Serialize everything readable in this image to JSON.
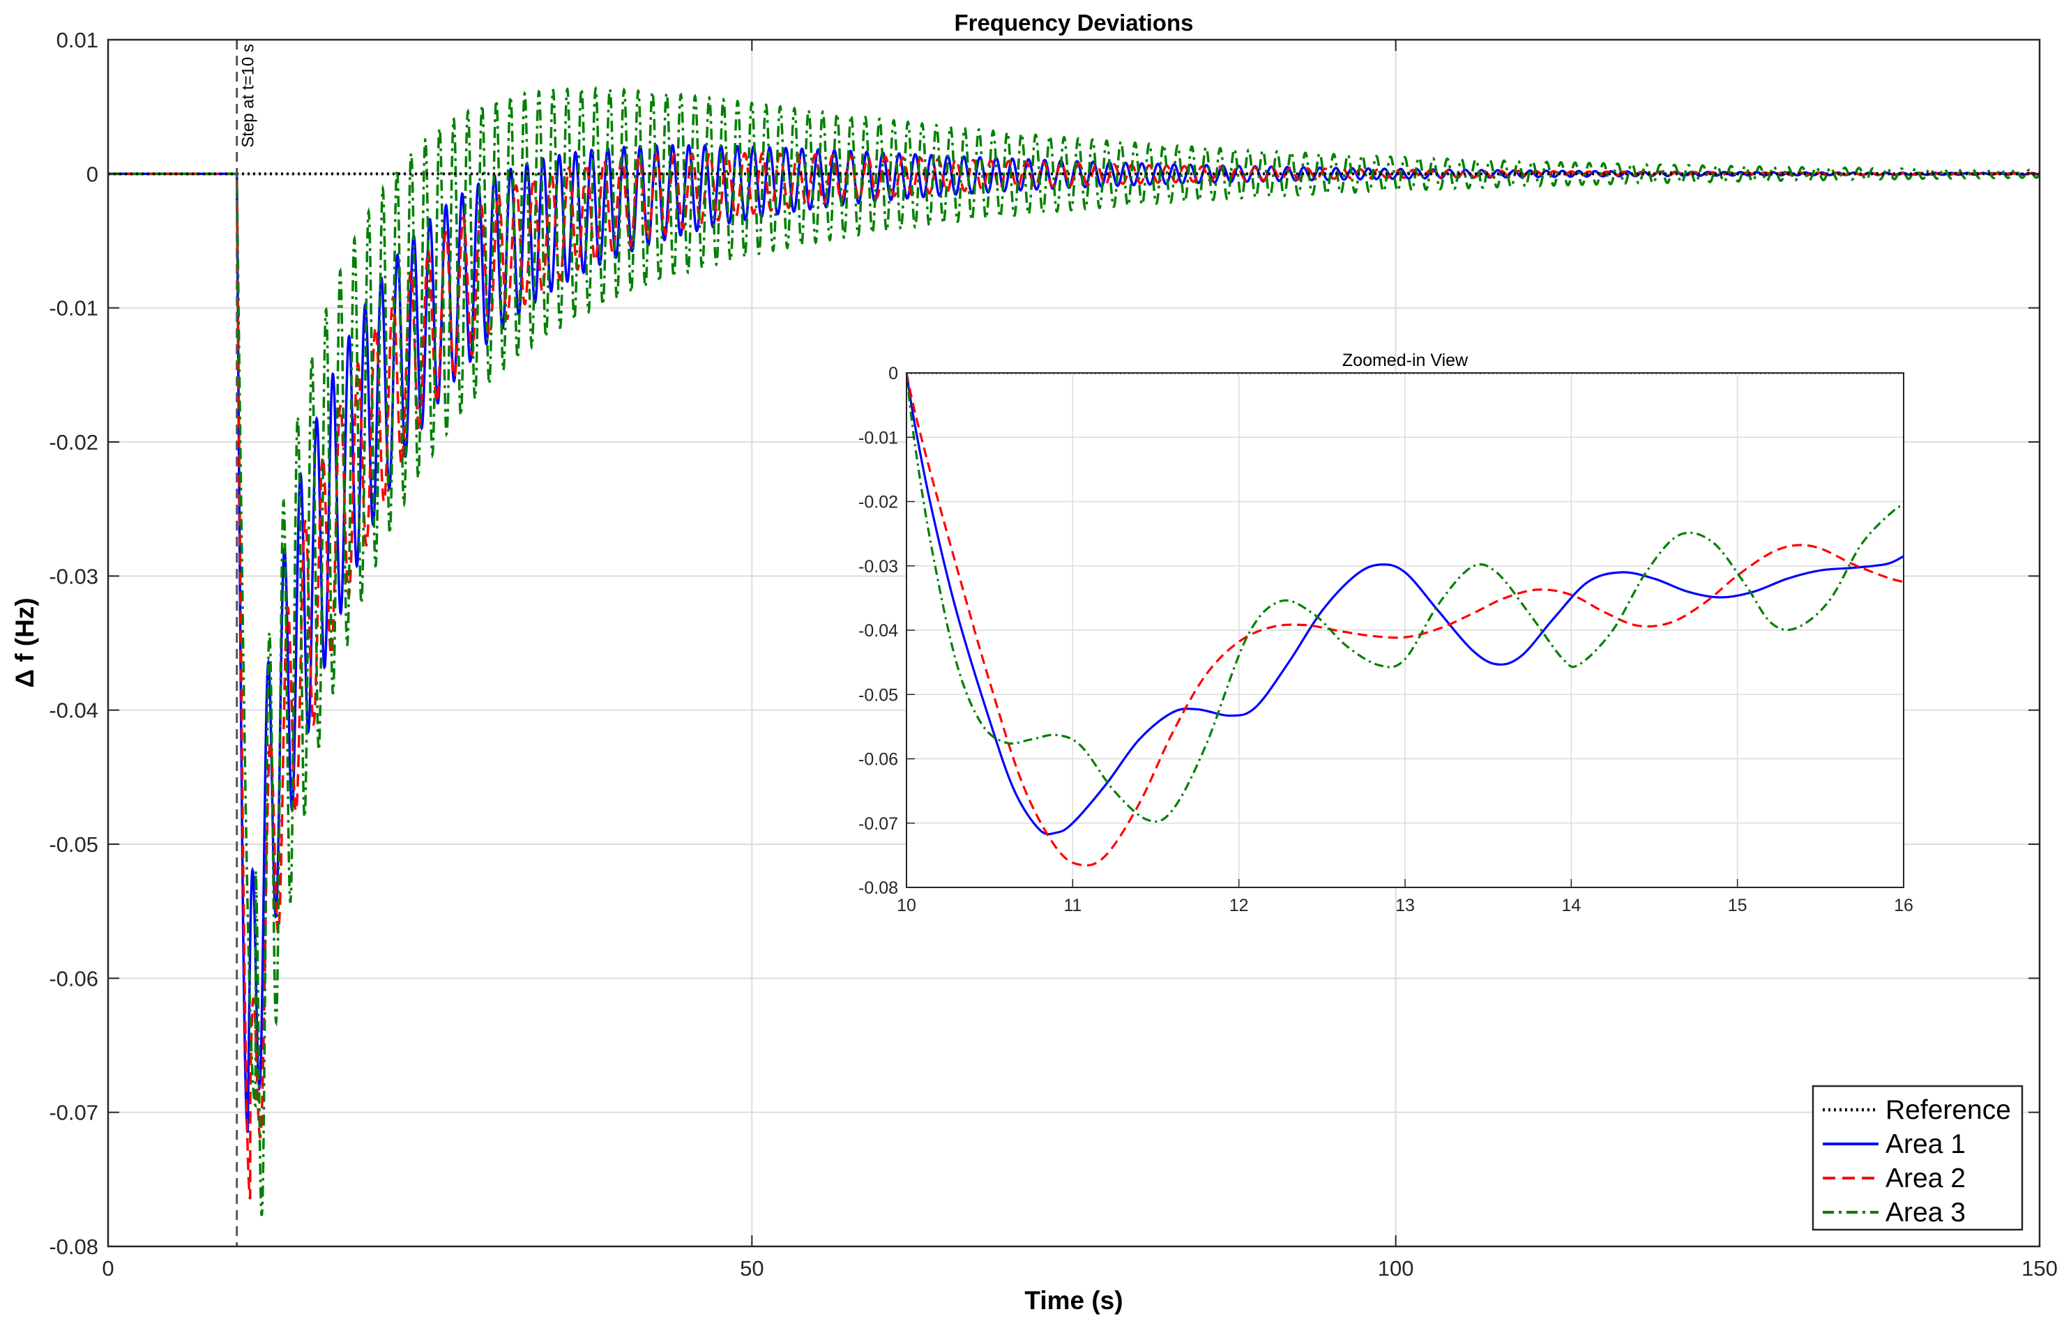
{
  "chart_data": [
    {
      "type": "line",
      "title": "Frequency Deviations",
      "xlabel": "Time (s)",
      "ylabel": "Δ f (Hz)",
      "xlim": [
        0,
        150
      ],
      "ylim": [
        -0.08,
        0.01
      ],
      "xticks": [
        "0",
        "50",
        "100",
        "150"
      ],
      "yticks": [
        "0.01",
        "0",
        "-0.01",
        "-0.02",
        "-0.03",
        "-0.04",
        "-0.05",
        "-0.06",
        "-0.07",
        "-0.08"
      ],
      "grid": true,
      "legend_position": "bottom-right",
      "annotation": {
        "text": "Step at t=10 s",
        "x": 10
      },
      "series": [
        {
          "name": "Reference",
          "color": "#000000",
          "style": "dotted",
          "model": "zero"
        },
        {
          "name": "Area 1",
          "color": "#0000ff",
          "style": "solid",
          "model": "area1"
        },
        {
          "name": "Area 2",
          "color": "#ff0000",
          "style": "dashed",
          "model": "area2"
        },
        {
          "name": "Area 3",
          "color": "#008000",
          "style": "dashdot",
          "model": "area3"
        }
      ]
    },
    {
      "type": "line",
      "title": "Zoomed-in View",
      "xlim": [
        10,
        16
      ],
      "ylim": [
        -0.08,
        0
      ],
      "xticks": [
        "10",
        "11",
        "12",
        "13",
        "14",
        "15",
        "16"
      ],
      "yticks": [
        "0",
        "-0.01",
        "-0.02",
        "-0.03",
        "-0.04",
        "-0.05",
        "-0.06",
        "-0.07",
        "-0.08"
      ],
      "grid": true,
      "series": [
        {
          "name": "Reference",
          "color": "#000000",
          "style": "dotted",
          "x": [
            10,
            16
          ],
          "y": [
            0,
            0
          ]
        },
        {
          "name": "Area 1",
          "color": "#0000ff",
          "style": "solid",
          "x": [
            10,
            10.05,
            10.15,
            10.3,
            10.5,
            10.65,
            10.8,
            10.9,
            11.0,
            11.2,
            11.4,
            11.6,
            11.75,
            11.95,
            12.1,
            12.3,
            12.5,
            12.7,
            12.85,
            13.0,
            13.2,
            13.4,
            13.55,
            13.7,
            13.9,
            14.1,
            14.3,
            14.5,
            14.7,
            14.9,
            15.1,
            15.3,
            15.5,
            15.7,
            15.9,
            16.0
          ],
          "y": [
            0,
            -0.008,
            -0.021,
            -0.037,
            -0.054,
            -0.065,
            -0.071,
            -0.0715,
            -0.07,
            -0.064,
            -0.057,
            -0.0528,
            -0.0523,
            -0.0533,
            -0.052,
            -0.045,
            -0.037,
            -0.0315,
            -0.0298,
            -0.031,
            -0.037,
            -0.043,
            -0.0453,
            -0.044,
            -0.038,
            -0.0325,
            -0.031,
            -0.032,
            -0.034,
            -0.0349,
            -0.034,
            -0.032,
            -0.0307,
            -0.0303,
            -0.0297,
            -0.0285
          ]
        },
        {
          "name": "Area 2",
          "color": "#ff0000",
          "style": "dashed",
          "x": [
            10,
            10.05,
            10.15,
            10.3,
            10.5,
            10.7,
            10.9,
            11.05,
            11.2,
            11.4,
            11.6,
            11.8,
            12.0,
            12.2,
            12.4,
            12.6,
            12.8,
            13.0,
            13.2,
            13.4,
            13.6,
            13.8,
            14.0,
            14.2,
            14.4,
            14.6,
            14.8,
            15.0,
            15.2,
            15.35,
            15.5,
            15.7,
            15.9,
            16.0
          ],
          "y": [
            0,
            -0.006,
            -0.016,
            -0.03,
            -0.048,
            -0.064,
            -0.0738,
            -0.0765,
            -0.075,
            -0.067,
            -0.056,
            -0.047,
            -0.0418,
            -0.0395,
            -0.0392,
            -0.0401,
            -0.0409,
            -0.0411,
            -0.0398,
            -0.0375,
            -0.035,
            -0.0337,
            -0.0345,
            -0.0372,
            -0.0393,
            -0.0388,
            -0.0358,
            -0.0315,
            -0.028,
            -0.0268,
            -0.0273,
            -0.0298,
            -0.0318,
            -0.0325
          ]
        },
        {
          "name": "Area 3",
          "color": "#008000",
          "style": "dashdot",
          "x": [
            10,
            10.05,
            10.15,
            10.3,
            10.45,
            10.6,
            10.75,
            10.9,
            11.05,
            11.25,
            11.45,
            11.6,
            11.8,
            12.05,
            12.25,
            12.45,
            12.65,
            12.85,
            13.0,
            13.2,
            13.4,
            13.55,
            13.75,
            13.95,
            14.05,
            14.25,
            14.45,
            14.65,
            14.85,
            15.05,
            15.2,
            15.35,
            15.55,
            15.75,
            15.95,
            16.0
          ],
          "y": [
            0,
            -0.011,
            -0.027,
            -0.045,
            -0.0545,
            -0.0575,
            -0.057,
            -0.0563,
            -0.058,
            -0.065,
            -0.0695,
            -0.068,
            -0.058,
            -0.041,
            -0.0355,
            -0.0375,
            -0.0425,
            -0.0455,
            -0.0445,
            -0.036,
            -0.0302,
            -0.031,
            -0.0375,
            -0.0445,
            -0.0453,
            -0.04,
            -0.031,
            -0.0252,
            -0.0263,
            -0.033,
            -0.0388,
            -0.0397,
            -0.0355,
            -0.0265,
            -0.0212,
            -0.021
          ]
        }
      ]
    }
  ]
}
